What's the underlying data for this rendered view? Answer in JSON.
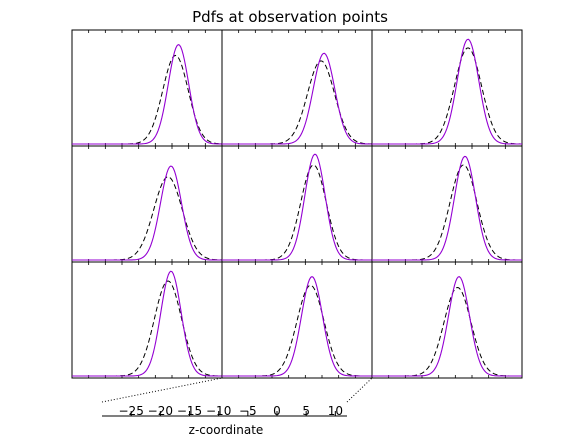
{
  "chart_data": {
    "type": "line",
    "title": "Pdfs at observation points",
    "xlabel": "z-coordinate",
    "xticks": [
      "−25",
      "−20",
      "−15",
      "−10",
      "−5",
      "0",
      "5",
      "10"
    ],
    "xtick_values": [
      -25,
      -20,
      -15,
      -10,
      -5,
      0,
      5,
      10
    ],
    "xlim": [
      -30,
      12
    ],
    "grid": "off",
    "layout": {
      "rows": 3,
      "cols": 3
    },
    "series_styles": [
      {
        "style": "solid",
        "color": "#9400d3"
      },
      {
        "style": "dashed",
        "color": "#000000"
      }
    ],
    "panels": [
      {
        "solid": {
          "mu": 0.71,
          "sigma": 0.068,
          "amp": 0.92
        },
        "dashed": {
          "mu": 0.69,
          "sigma": 0.085,
          "amp": 0.82
        }
      },
      {
        "solid": {
          "mu": 0.68,
          "sigma": 0.072,
          "amp": 0.84
        },
        "dashed": {
          "mu": 0.66,
          "sigma": 0.09,
          "amp": 0.77
        }
      },
      {
        "solid": {
          "mu": 0.64,
          "sigma": 0.072,
          "amp": 0.97
        },
        "dashed": {
          "mu": 0.64,
          "sigma": 0.09,
          "amp": 0.89
        }
      },
      {
        "solid": {
          "mu": 0.66,
          "sigma": 0.07,
          "amp": 0.87
        },
        "dashed": {
          "mu": 0.64,
          "sigma": 0.095,
          "amp": 0.77
        }
      },
      {
        "solid": {
          "mu": 0.62,
          "sigma": 0.068,
          "amp": 0.98
        },
        "dashed": {
          "mu": 0.61,
          "sigma": 0.085,
          "amp": 0.88
        }
      },
      {
        "solid": {
          "mu": 0.62,
          "sigma": 0.07,
          "amp": 0.96
        },
        "dashed": {
          "mu": 0.61,
          "sigma": 0.09,
          "amp": 0.88
        }
      },
      {
        "solid": {
          "mu": 0.66,
          "sigma": 0.068,
          "amp": 0.97
        },
        "dashed": {
          "mu": 0.64,
          "sigma": 0.09,
          "amp": 0.88
        }
      },
      {
        "solid": {
          "mu": 0.6,
          "sigma": 0.07,
          "amp": 0.92
        },
        "dashed": {
          "mu": 0.59,
          "sigma": 0.09,
          "amp": 0.84
        }
      },
      {
        "solid": {
          "mu": 0.58,
          "sigma": 0.07,
          "amp": 0.92
        },
        "dashed": {
          "mu": 0.57,
          "sigma": 0.09,
          "amp": 0.82
        }
      }
    ]
  }
}
